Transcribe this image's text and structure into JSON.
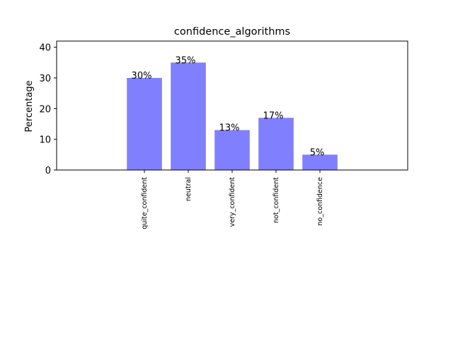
{
  "chart_data": {
    "type": "bar",
    "title": "confidence_algorithms",
    "xlabel": "",
    "ylabel": "Percentage",
    "categories": [
      "quite_confident",
      "neutral",
      "very_confident",
      "not_confident",
      "no_confidence"
    ],
    "values": [
      30,
      35,
      13,
      17,
      5
    ],
    "data_labels": [
      "30%",
      "35%",
      "13%",
      "17%",
      "5%"
    ],
    "ylim": [
      0,
      42
    ],
    "yticks": [
      0,
      10,
      20,
      30,
      40
    ],
    "bar_color": "#8080ff",
    "grid": false,
    "legend": "none"
  }
}
